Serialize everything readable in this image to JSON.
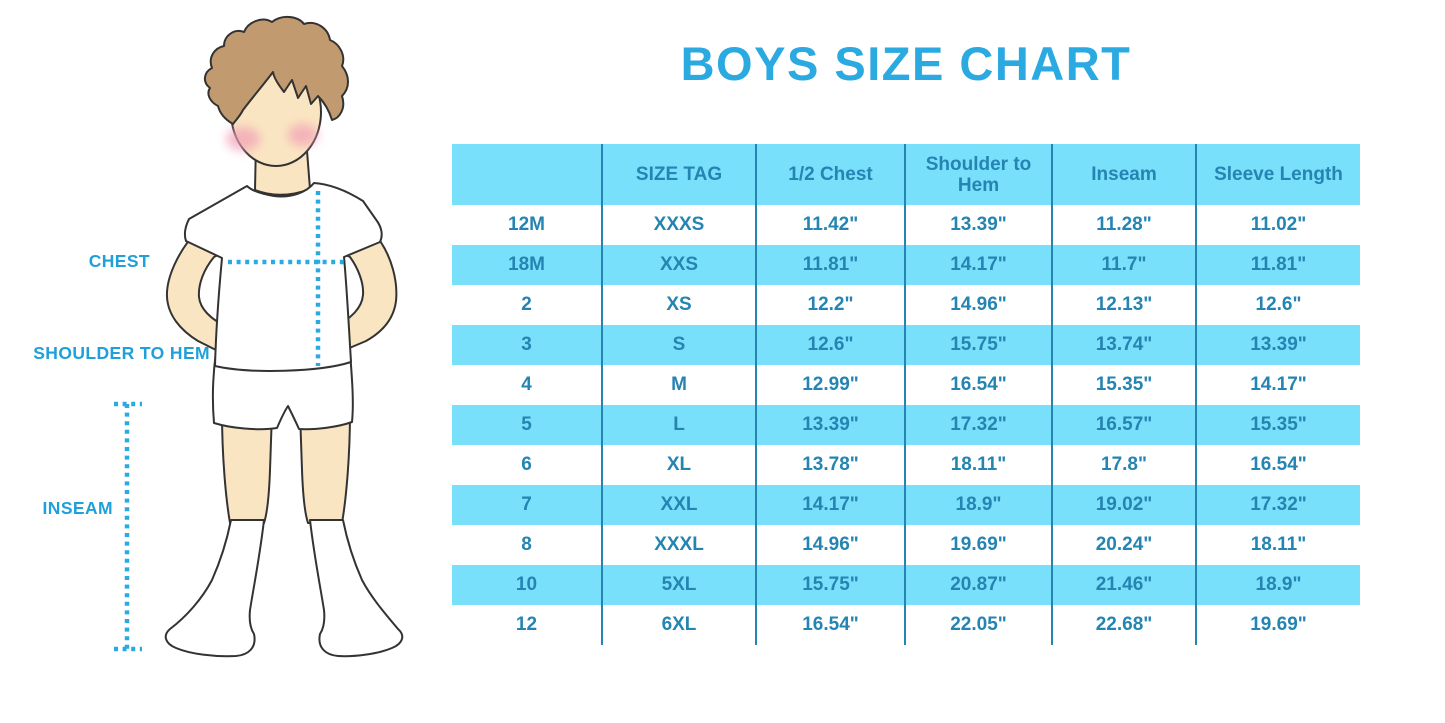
{
  "title": "BOYS SIZE CHART",
  "figure": {
    "chest_label": "CHEST",
    "shoulder_to_hem_label": "SHOULDER TO HEM",
    "inseam_label": "INSEAM",
    "illustration": "boy in white t-shirt, shorts and knee socks with dotted measurement guides"
  },
  "colors": {
    "title_blue": "#2BA9E1",
    "label_blue": "#1FA0DB",
    "dotted_line_blue": "#29ABE2",
    "band_blue": "#79E0FB",
    "table_text_blue": "#2484B2",
    "skin": "#FAE5C2",
    "hair": "#C19B6F"
  },
  "chart_data": {
    "type": "table",
    "title": "BOYS SIZE CHART",
    "columns": [
      "",
      "SIZE TAG",
      "1/2 Chest",
      "Shoulder to Hem",
      "Inseam",
      "Sleeve Length"
    ],
    "rows": [
      [
        "12M",
        "XXXS",
        "11.42\"",
        "13.39\"",
        "11.28\"",
        "11.02\""
      ],
      [
        "18M",
        "XXS",
        "11.81\"",
        "14.17\"",
        "11.7\"",
        "11.81\""
      ],
      [
        "2",
        "XS",
        "12.2\"",
        "14.96\"",
        "12.13\"",
        "12.6\""
      ],
      [
        "3",
        "S",
        "12.6\"",
        "15.75\"",
        "13.74\"",
        "13.39\""
      ],
      [
        "4",
        "M",
        "12.99\"",
        "16.54\"",
        "15.35\"",
        "14.17\""
      ],
      [
        "5",
        "L",
        "13.39\"",
        "17.32\"",
        "16.57\"",
        "15.35\""
      ],
      [
        "6",
        "XL",
        "13.78\"",
        "18.11\"",
        "17.8\"",
        "16.54\""
      ],
      [
        "7",
        "XXL",
        "14.17\"",
        "18.9\"",
        "19.02\"",
        "17.32\""
      ],
      [
        "8",
        "XXXL",
        "14.96\"",
        "19.69\"",
        "20.24\"",
        "18.11\""
      ],
      [
        "10",
        "5XL",
        "15.75\"",
        "20.87\"",
        "21.46\"",
        "18.9\""
      ],
      [
        "12",
        "6XL",
        "16.54\"",
        "22.05\"",
        "22.68\"",
        "19.69\""
      ]
    ],
    "row_striping": "white / light-blue alternating, header band light-blue",
    "units": "inches"
  }
}
